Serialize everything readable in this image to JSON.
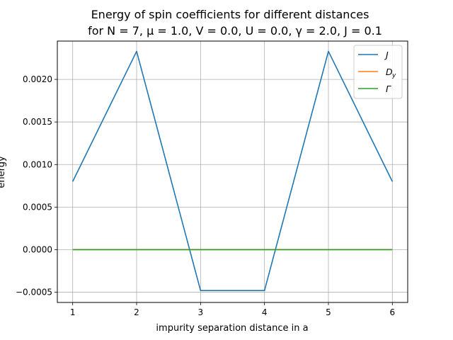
{
  "chart_data": {
    "type": "line",
    "title_line1": "Energy of spin coefficients for different distances",
    "title_line2": "for N = 7, μ =  1.0, V = 0.0, U = 0.0, γ = 2.0, J = 0.1",
    "xlabel": "impurity separation distance in a",
    "ylabel": "energy",
    "x": [
      1,
      2,
      3,
      4,
      5,
      6
    ],
    "xlim": [
      0.76,
      6.24
    ],
    "ylim": [
      -0.00062,
      0.00245
    ],
    "xticks": [
      "1",
      "2",
      "3",
      "4",
      "5",
      "6"
    ],
    "yticks": [
      {
        "value": -0.0005,
        "label": "−0.0005"
      },
      {
        "value": 0.0,
        "label": "0.0000"
      },
      {
        "value": 0.0005,
        "label": "0.0005"
      },
      {
        "value": 0.001,
        "label": "0.0010"
      },
      {
        "value": 0.0015,
        "label": "0.0015"
      },
      {
        "value": 0.002,
        "label": "0.0020"
      }
    ],
    "grid": true,
    "legend_position": "top-right",
    "series": [
      {
        "name": "J",
        "legend_main": "J",
        "legend_sub": "",
        "color": "#1f77b4",
        "values": [
          0.0008,
          0.00233,
          -0.00048,
          -0.00048,
          0.00233,
          0.0008
        ]
      },
      {
        "name": "D_y",
        "legend_main": "D",
        "legend_sub": "y",
        "color": "#ff7f0e",
        "values": [
          0.0,
          0.0,
          0.0,
          0.0,
          0.0,
          0.0
        ]
      },
      {
        "name": "Γ",
        "legend_main": "Γ",
        "legend_sub": "",
        "color": "#2ca02c",
        "values": [
          0.0,
          0.0,
          0.0,
          0.0,
          0.0,
          0.0
        ]
      }
    ]
  }
}
